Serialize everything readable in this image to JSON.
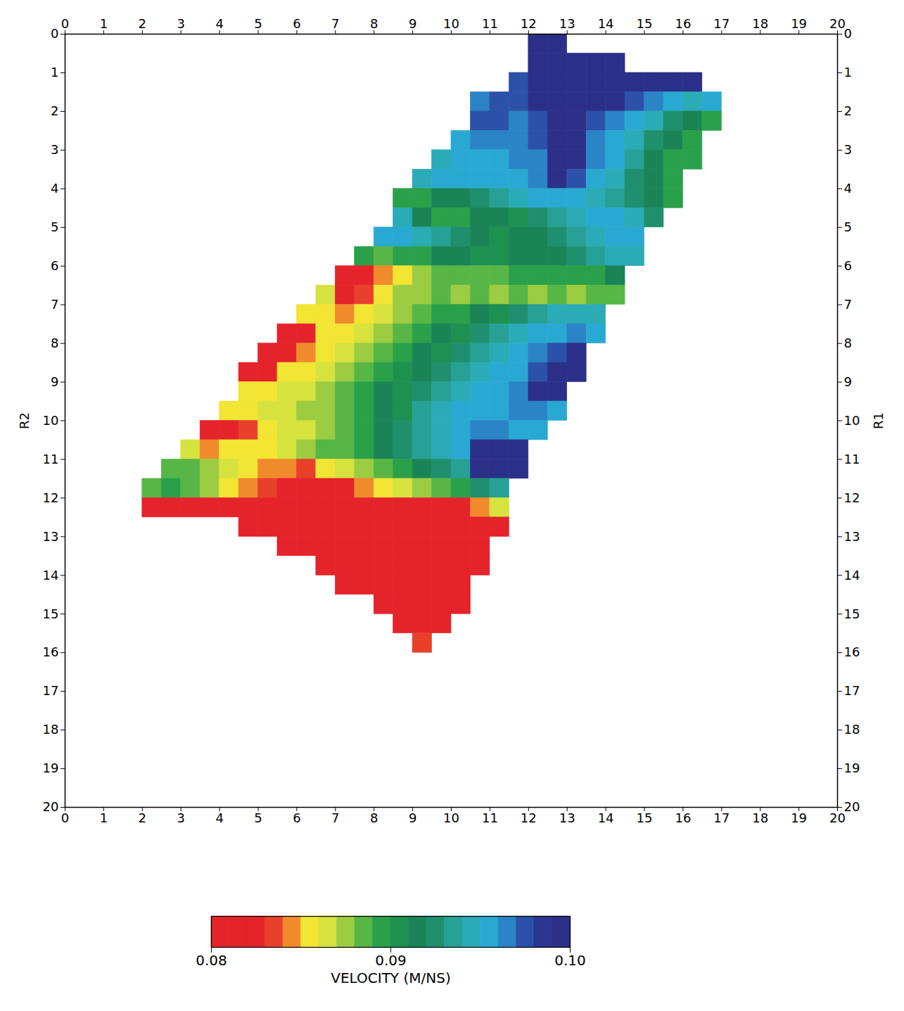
{
  "chart_data": {
    "type": "heatmap",
    "xlim": [
      0,
      20
    ],
    "xticks": [
      0,
      1,
      2,
      3,
      4,
      5,
      6,
      7,
      8,
      9,
      10,
      11,
      12,
      13,
      14,
      15,
      16,
      17,
      18,
      19,
      20
    ],
    "ylim": [
      20,
      0
    ],
    "yticks": [
      0,
      1,
      2,
      3,
      4,
      5,
      6,
      7,
      8,
      9,
      10,
      11,
      12,
      13,
      14,
      15,
      16,
      17,
      18,
      19,
      20
    ],
    "ylabel": "R2",
    "y2lim": [
      20,
      0
    ],
    "y2ticks": [
      0,
      1,
      2,
      3,
      4,
      5,
      6,
      7,
      8,
      9,
      10,
      11,
      12,
      13,
      14,
      15,
      16,
      17,
      18,
      19,
      20
    ],
    "y2label": "R1",
    "x": [
      2.25,
      2.75,
      3.25,
      3.75,
      4.25,
      4.75,
      5.25,
      5.75,
      6.25,
      6.75,
      7.25,
      7.75,
      8.25,
      8.75,
      9.25,
      9.75,
      10.25,
      10.75,
      11.25,
      11.75,
      12.25,
      12.75,
      13.25,
      13.75,
      14.25,
      14.75,
      15.25,
      15.75,
      16.25,
      16.75,
      17.25
    ],
    "y": [
      0.25,
      0.75,
      1.25,
      1.75,
      2.25,
      2.75,
      3.25,
      3.75,
      4.25,
      4.75,
      5.25,
      5.75,
      6.25,
      6.75,
      7.25,
      7.75,
      8.25,
      8.75,
      9.25,
      9.75,
      10.25,
      10.75,
      11.25,
      11.75,
      12.25,
      12.75,
      13.25,
      13.75,
      14.25,
      14.75,
      15.25,
      15.75
    ],
    "values": [
      [
        null,
        null,
        null,
        null,
        null,
        null,
        null,
        null,
        null,
        null,
        null,
        null,
        null,
        null,
        null,
        null,
        null,
        null,
        null,
        null,
        0.099,
        0.099,
        null,
        null,
        null,
        null,
        null,
        null,
        null,
        null,
        null
      ],
      [
        null,
        null,
        null,
        null,
        null,
        null,
        null,
        null,
        null,
        null,
        null,
        null,
        null,
        null,
        null,
        null,
        null,
        null,
        null,
        null,
        0.099,
        0.099,
        0.099,
        0.099,
        0.099,
        null,
        null,
        null,
        null,
        null,
        null
      ],
      [
        null,
        null,
        null,
        null,
        null,
        null,
        null,
        null,
        null,
        null,
        null,
        null,
        null,
        null,
        null,
        null,
        null,
        null,
        null,
        0.0975,
        0.099,
        0.099,
        0.099,
        0.099,
        0.099,
        0.099,
        0.099,
        0.099,
        0.099,
        null,
        null
      ],
      [
        null,
        null,
        null,
        null,
        null,
        null,
        null,
        null,
        null,
        null,
        null,
        null,
        null,
        null,
        null,
        null,
        null,
        0.0965,
        0.0975,
        0.0975,
        0.099,
        0.099,
        0.099,
        0.099,
        0.099,
        0.0975,
        0.0965,
        0.0955,
        0.0945,
        0.0955,
        null
      ],
      [
        null,
        null,
        null,
        null,
        null,
        null,
        null,
        null,
        null,
        null,
        null,
        null,
        null,
        null,
        null,
        null,
        null,
        0.0975,
        0.0975,
        0.0965,
        0.0975,
        0.099,
        0.099,
        0.0975,
        0.0965,
        0.0955,
        0.0945,
        0.0925,
        0.0915,
        0.0895,
        null
      ],
      [
        null,
        null,
        null,
        null,
        null,
        null,
        null,
        null,
        null,
        null,
        null,
        null,
        null,
        null,
        null,
        null,
        0.0955,
        0.0965,
        0.0965,
        0.0965,
        0.0975,
        0.099,
        0.099,
        0.0965,
        0.0955,
        0.0945,
        0.0925,
        0.0915,
        0.0895,
        null,
        null
      ],
      [
        null,
        null,
        null,
        null,
        null,
        null,
        null,
        null,
        null,
        null,
        null,
        null,
        null,
        null,
        null,
        0.0945,
        0.0955,
        0.0955,
        0.0955,
        0.0965,
        0.0965,
        0.099,
        0.099,
        0.0965,
        0.0955,
        0.0935,
        0.0915,
        0.0895,
        0.0895,
        null,
        null
      ],
      [
        null,
        null,
        null,
        null,
        null,
        null,
        null,
        null,
        null,
        null,
        null,
        null,
        null,
        null,
        0.0945,
        0.0955,
        0.0955,
        0.0955,
        0.0955,
        0.0955,
        0.0965,
        0.099,
        0.0975,
        0.0955,
        0.0945,
        0.0925,
        0.0915,
        0.0895,
        null,
        null,
        null
      ],
      [
        null,
        null,
        null,
        null,
        null,
        null,
        null,
        null,
        null,
        null,
        null,
        null,
        null,
        0.0895,
        0.0895,
        0.0915,
        0.0915,
        0.0925,
        0.0935,
        0.0945,
        0.0955,
        0.0955,
        0.0955,
        0.0945,
        0.0935,
        0.0925,
        0.0915,
        0.0895,
        null,
        null,
        null
      ],
      [
        null,
        null,
        null,
        null,
        null,
        null,
        null,
        null,
        null,
        null,
        null,
        null,
        null,
        0.0945,
        0.0915,
        0.0895,
        0.0895,
        0.0915,
        0.0915,
        0.0905,
        0.0925,
        0.0935,
        0.0945,
        0.0955,
        0.0955,
        0.0945,
        0.0925,
        null,
        null,
        null,
        null
      ],
      [
        null,
        null,
        null,
        null,
        null,
        null,
        null,
        null,
        null,
        null,
        null,
        null,
        0.0955,
        0.0955,
        0.0945,
        0.0935,
        0.0925,
        0.0915,
        0.0905,
        0.0915,
        0.0915,
        0.0925,
        0.0935,
        0.0945,
        0.0955,
        0.0955,
        null,
        null,
        null,
        null,
        null
      ],
      [
        null,
        null,
        null,
        null,
        null,
        null,
        null,
        null,
        null,
        null,
        null,
        0.0895,
        0.0885,
        0.0895,
        0.0895,
        0.0915,
        0.0915,
        0.0905,
        0.0905,
        0.0915,
        0.0915,
        0.0915,
        0.0925,
        0.0935,
        0.0945,
        0.0945,
        null,
        null,
        null,
        null,
        null
      ],
      [
        null,
        null,
        null,
        null,
        null,
        null,
        null,
        null,
        null,
        null,
        0.081,
        0.081,
        0.0845,
        0.0855,
        0.0875,
        0.0885,
        0.0885,
        0.0885,
        0.0885,
        0.0895,
        0.0895,
        0.0895,
        0.0895,
        0.0895,
        0.0915,
        null,
        null,
        null,
        null,
        null,
        null
      ],
      [
        null,
        null,
        null,
        null,
        null,
        null,
        null,
        null,
        null,
        0.0865,
        0.081,
        0.0835,
        0.0855,
        0.0875,
        0.0875,
        0.0885,
        0.0875,
        0.0885,
        0.0875,
        0.0885,
        0.0875,
        0.0885,
        0.0875,
        0.0885,
        0.0885,
        null,
        null,
        null,
        null,
        null,
        null
      ],
      [
        null,
        null,
        null,
        null,
        null,
        null,
        null,
        null,
        0.0855,
        0.0855,
        0.0845,
        0.0855,
        0.0865,
        0.0875,
        0.0885,
        0.0895,
        0.0895,
        0.0915,
        0.0905,
        0.0925,
        0.0935,
        0.0945,
        0.0945,
        0.0945,
        null,
        null,
        null,
        null,
        null,
        null,
        null
      ],
      [
        null,
        null,
        null,
        null,
        null,
        null,
        null,
        0.081,
        0.081,
        0.0855,
        0.0855,
        0.0865,
        0.0875,
        0.0885,
        0.0895,
        0.0915,
        0.0905,
        0.0925,
        0.0935,
        0.0945,
        0.0955,
        0.0955,
        0.0965,
        0.0955,
        null,
        null,
        null,
        null,
        null,
        null,
        null
      ],
      [
        null,
        null,
        null,
        null,
        null,
        null,
        0.081,
        0.081,
        0.0845,
        0.0855,
        0.0865,
        0.0875,
        0.0885,
        0.0895,
        0.0915,
        0.0905,
        0.0925,
        0.0935,
        0.0945,
        0.0955,
        0.0965,
        0.0975,
        0.099,
        null,
        null,
        null,
        null,
        null,
        null,
        null,
        null
      ],
      [
        null,
        null,
        null,
        null,
        null,
        0.081,
        0.081,
        0.0855,
        0.0855,
        0.0865,
        0.0875,
        0.0885,
        0.0895,
        0.0905,
        0.0915,
        0.0925,
        0.0935,
        0.0945,
        0.0955,
        0.0955,
        0.0975,
        0.099,
        0.099,
        null,
        null,
        null,
        null,
        null,
        null,
        null,
        null
      ],
      [
        null,
        null,
        null,
        null,
        null,
        0.0855,
        0.0855,
        0.0865,
        0.0865,
        0.0875,
        0.0885,
        0.0895,
        0.0915,
        0.0905,
        0.0925,
        0.0935,
        0.0945,
        0.0955,
        0.0955,
        0.0965,
        0.099,
        0.099,
        null,
        null,
        null,
        null,
        null,
        null,
        null,
        null,
        null
      ],
      [
        null,
        null,
        null,
        null,
        0.0855,
        0.0855,
        0.0865,
        0.0865,
        0.0875,
        0.0875,
        0.0885,
        0.0895,
        0.0915,
        0.0905,
        0.0935,
        0.0945,
        0.0955,
        0.0955,
        0.0955,
        0.0965,
        0.0965,
        0.0955,
        null,
        null,
        null,
        null,
        null,
        null,
        null,
        null,
        null
      ],
      [
        null,
        null,
        null,
        0.081,
        0.081,
        0.0835,
        0.0855,
        0.0865,
        0.0865,
        0.0875,
        0.0885,
        0.0895,
        0.0915,
        0.0925,
        0.0935,
        0.0945,
        0.0955,
        0.0965,
        0.0965,
        0.0955,
        0.0955,
        null,
        null,
        null,
        null,
        null,
        null,
        null,
        null,
        null,
        null
      ],
      [
        null,
        null,
        0.0865,
        0.0845,
        0.0855,
        0.0855,
        0.0855,
        0.0865,
        0.0875,
        0.0885,
        0.0885,
        0.0895,
        0.0915,
        0.0925,
        0.0935,
        0.0945,
        0.0955,
        0.099,
        0.099,
        0.099,
        null,
        null,
        null,
        null,
        null,
        null,
        null,
        null,
        null,
        null,
        null
      ],
      [
        null,
        0.0885,
        0.0885,
        0.0875,
        0.0865,
        0.0855,
        0.0845,
        0.0845,
        0.0835,
        0.0855,
        0.0865,
        0.0875,
        0.0885,
        0.0895,
        0.0915,
        0.0925,
        0.0935,
        0.099,
        0.099,
        0.099,
        null,
        null,
        null,
        null,
        null,
        null,
        null,
        null,
        null,
        null,
        null
      ],
      [
        0.0885,
        0.0895,
        0.0885,
        0.0875,
        0.0855,
        0.0845,
        0.0835,
        0.081,
        0.081,
        0.081,
        0.081,
        0.0845,
        0.0855,
        0.0865,
        0.0875,
        0.0885,
        0.0895,
        0.0925,
        0.0935,
        null,
        null,
        null,
        null,
        null,
        null,
        null,
        null,
        null,
        null,
        null,
        null
      ],
      [
        0.081,
        0.081,
        0.081,
        0.081,
        0.081,
        0.081,
        0.081,
        0.081,
        0.081,
        0.081,
        0.081,
        0.081,
        0.081,
        0.081,
        0.081,
        0.081,
        0.081,
        0.0845,
        0.0865,
        null,
        null,
        null,
        null,
        null,
        null,
        null,
        null,
        null,
        null,
        null,
        null
      ],
      [
        null,
        null,
        null,
        null,
        null,
        0.081,
        0.081,
        0.081,
        0.081,
        0.081,
        0.081,
        0.081,
        0.081,
        0.081,
        0.081,
        0.081,
        0.081,
        0.081,
        0.081,
        null,
        null,
        null,
        null,
        null,
        null,
        null,
        null,
        null,
        null,
        null,
        null
      ],
      [
        null,
        null,
        null,
        null,
        null,
        null,
        null,
        0.081,
        0.081,
        0.081,
        0.081,
        0.081,
        0.081,
        0.081,
        0.081,
        0.081,
        0.081,
        0.081,
        null,
        null,
        null,
        null,
        null,
        null,
        null,
        null,
        null,
        null,
        null,
        null,
        null
      ],
      [
        null,
        null,
        null,
        null,
        null,
        null,
        null,
        null,
        null,
        0.081,
        0.081,
        0.081,
        0.081,
        0.081,
        0.081,
        0.081,
        0.081,
        0.081,
        null,
        null,
        null,
        null,
        null,
        null,
        null,
        null,
        null,
        null,
        null,
        null,
        null
      ],
      [
        null,
        null,
        null,
        null,
        null,
        null,
        null,
        null,
        null,
        null,
        0.081,
        0.081,
        0.081,
        0.081,
        0.081,
        0.081,
        0.081,
        null,
        null,
        null,
        null,
        null,
        null,
        null,
        null,
        null,
        null,
        null,
        null,
        null,
        null
      ],
      [
        null,
        null,
        null,
        null,
        null,
        null,
        null,
        null,
        null,
        null,
        null,
        null,
        0.081,
        0.081,
        0.081,
        0.081,
        0.081,
        null,
        null,
        null,
        null,
        null,
        null,
        null,
        null,
        null,
        null,
        null,
        null,
        null,
        null
      ],
      [
        null,
        null,
        null,
        null,
        null,
        null,
        null,
        null,
        null,
        null,
        null,
        null,
        null,
        0.081,
        0.081,
        0.081,
        null,
        null,
        null,
        null,
        null,
        null,
        null,
        null,
        null,
        null,
        null,
        null,
        null,
        null,
        null
      ],
      [
        null,
        null,
        null,
        null,
        null,
        null,
        null,
        null,
        null,
        null,
        null,
        null,
        null,
        null,
        0.0835,
        null,
        null,
        null,
        null,
        null,
        null,
        null,
        null,
        null,
        null,
        null,
        null,
        null,
        null,
        null,
        null
      ]
    ],
    "colorbar": {
      "label": "VELOCITY (M/NS)",
      "range": [
        0.08,
        0.1
      ],
      "ticks": [
        0.08,
        0.09,
        {
          "value": 0.1,
          "label": "0.10"
        }
      ],
      "colors": [
        "#e4232a",
        "#e4232a",
        "#e4232a",
        "#e8402a",
        "#f08a2c",
        "#f2e533",
        "#d6e23e",
        "#9ccc42",
        "#58b646",
        "#2aa04a",
        "#1e9050",
        "#1a8456",
        "#1f8f6e",
        "#27a095",
        "#2aabb5",
        "#29a9d2",
        "#2a84c6",
        "#2b52a8",
        "#2c3592",
        "#2c2f88"
      ]
    }
  }
}
